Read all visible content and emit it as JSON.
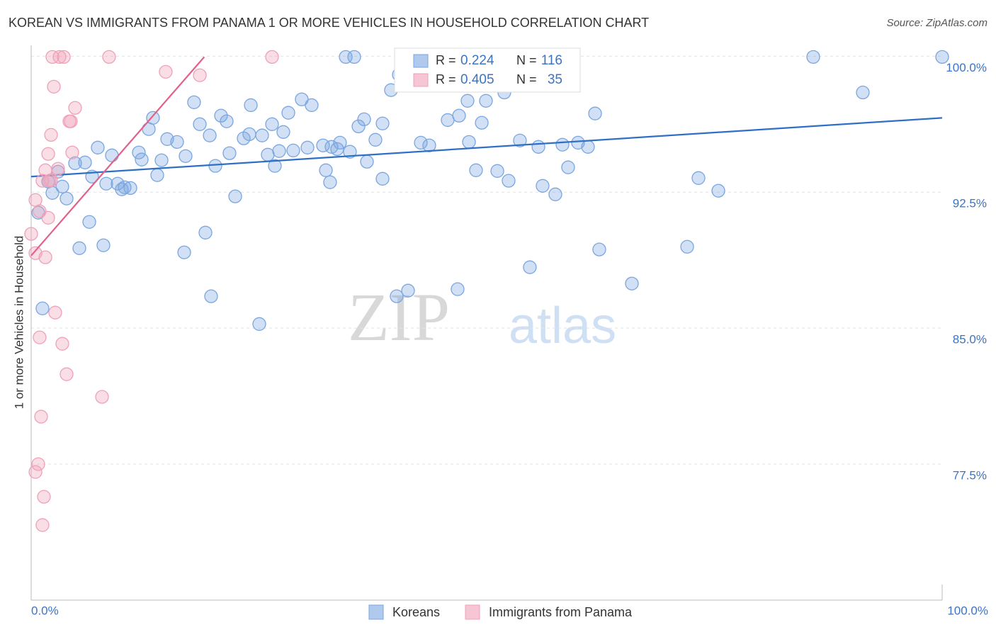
{
  "chart_data": {
    "type": "scatter",
    "title": "KOREAN VS IMMIGRANTS FROM PANAMA 1 OR MORE VEHICLES IN HOUSEHOLD CORRELATION CHART",
    "source": "Source: ZipAtlas.com",
    "y_label": "1 or more Vehicles in Household",
    "watermark": [
      "ZIP",
      "atlas"
    ],
    "r_label": "R =",
    "n_label": "N =",
    "xlim": [
      0,
      100
    ],
    "ylim": [
      70,
      100.6
    ],
    "xticks": [
      {
        "value": 0,
        "label": "0.0%"
      },
      {
        "value": 100,
        "label": "100.0%"
      }
    ],
    "yticks": [
      {
        "value": 77.5,
        "label": "77.5%"
      },
      {
        "value": 85,
        "label": "85.0%"
      },
      {
        "value": 92.5,
        "label": "92.5%"
      },
      {
        "value": 100,
        "label": "100.0%"
      }
    ],
    "grid": true,
    "series": [
      {
        "name": "Koreans",
        "color": "#7aa6e0",
        "line_color": "#2f6fc6",
        "r": 0.224,
        "n": 116,
        "x": [
          34.53,
          35.46,
          85.85,
          100,
          40.67,
          91.29,
          39.5,
          51.94,
          40.36,
          17.88,
          13.37,
          24.11,
          30.79,
          29.7,
          20.84,
          21.46,
          28.23,
          26.44,
          18.51,
          12.91,
          14.93,
          16.02,
          16.95,
          19.6,
          23.95,
          23.33,
          25.35,
          27.68,
          32.04,
          33.59,
          33.9,
          30.33,
          32.97,
          28.77,
          27.22,
          25.97,
          21.77,
          20.22,
          26.75,
          32.35,
          32.81,
          34.99,
          35.93,
          36.55,
          38.57,
          37.79,
          36.86,
          38.57,
          42.77,
          43.7,
          45.72,
          46.97,
          47.9,
          48.06,
          49.92,
          49.46,
          48.83,
          51.17,
          52.41,
          53.65,
          55.68,
          56.14,
          57.54,
          58.32,
          58.94,
          60.03,
          61.12,
          61.9,
          7.31,
          8.86,
          11.82,
          12.13,
          14.31,
          13.84,
          4.82,
          5.91,
          6.69,
          8.24,
          9.49,
          9.95,
          10.89,
          10.26,
          2.95,
          3.42,
          2.33,
          3.89,
          6.38,
          19.13,
          5.29,
          7.93,
          16.8,
          22.4,
          73.25,
          75.43,
          65.94,
          72.01,
          62.36,
          54.74,
          46.81,
          41.37,
          40.12,
          19.75,
          25.04,
          1.24,
          0.78,
          1.87,
          51.01
        ],
        "y": [
          99.96,
          99.96,
          99.96,
          99.96,
          99.96,
          98.0,
          98.13,
          98.0,
          98.98,
          97.46,
          96.6,
          97.3,
          97.3,
          97.62,
          96.72,
          96.41,
          96.88,
          96.25,
          96.25,
          95.98,
          95.43,
          95.27,
          94.49,
          95.63,
          95.7,
          95.47,
          95.63,
          95.82,
          95.08,
          94.88,
          95.23,
          94.96,
          95.0,
          94.8,
          94.77,
          94.57,
          94.65,
          93.95,
          93.95,
          93.71,
          93.05,
          94.73,
          96.13,
          96.52,
          96.29,
          95.39,
          94.18,
          93.24,
          95.23,
          95.08,
          96.48,
          96.72,
          97.54,
          95.27,
          97.54,
          96.33,
          93.71,
          93.67,
          93.13,
          95.35,
          95.0,
          92.85,
          92.38,
          95.12,
          93.87,
          95.23,
          95.0,
          96.84,
          94.96,
          94.53,
          94.69,
          94.3,
          94.26,
          93.44,
          94.1,
          94.14,
          93.36,
          92.97,
          92.97,
          92.66,
          92.73,
          92.77,
          93.63,
          92.81,
          92.46,
          92.15,
          90.86,
          90.27,
          89.41,
          89.57,
          89.18,
          92.27,
          93.28,
          92.58,
          87.46,
          89.49,
          89.34,
          88.36,
          87.15,
          87.07,
          86.76,
          86.76,
          85.23,
          86.09,
          91.37,
          93.09,
          98.98
        ],
        "trend": {
          "x": [
            0,
            100
          ],
          "y": [
            93.36,
            96.6
          ]
        }
      },
      {
        "name": "Immigrants from Panama",
        "color": "#f0a0b8",
        "line_color": "#e2618a",
        "r": 0.405,
        "n": 35,
        "x": [
          2.33,
          3.11,
          3.58,
          8.55,
          26.44,
          2.49,
          14.77,
          18.51,
          4.82,
          4.35,
          4.2,
          2.18,
          1.87,
          4.51,
          1.56,
          2.95,
          1.24,
          2.02,
          0.47,
          1.87,
          0,
          0.47,
          1.56,
          2.64,
          0.93,
          3.42,
          3.89,
          7.78,
          1.09,
          0.78,
          0.47,
          1.4,
          1.24,
          2.18,
          0.93
        ],
        "y": [
          99.96,
          99.96,
          99.96,
          99.96,
          99.96,
          98.32,
          99.14,
          98.95,
          97.15,
          96.41,
          96.41,
          95.66,
          94.61,
          94.69,
          93.71,
          93.79,
          93.13,
          93.13,
          92.07,
          91.09,
          90.2,
          89.14,
          88.91,
          85.86,
          84.49,
          84.14,
          82.46,
          81.21,
          80.12,
          77.5,
          77.07,
          75.7,
          74.14,
          93.16,
          91.45
        ],
        "trend": {
          "x": [
            0,
            19
          ],
          "y": [
            89.0,
            99.96
          ]
        }
      }
    ]
  }
}
